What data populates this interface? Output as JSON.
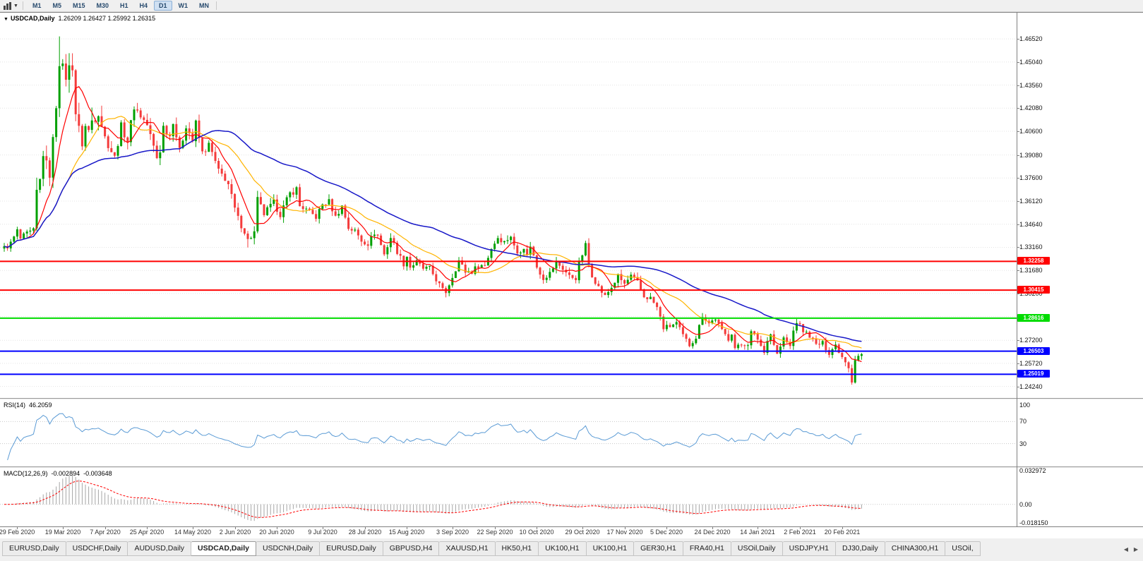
{
  "toolbar": {
    "timeframes": [
      "M1",
      "M5",
      "M15",
      "M30",
      "H1",
      "H4",
      "D1",
      "W1",
      "MN"
    ],
    "active_timeframe": "D1",
    "dropdown_caret": "▼"
  },
  "chart_data": {
    "type": "candlestick",
    "title": "USDCAD,Daily",
    "ohlc_display": "1.26209 1.26427 1.25992 1.26315",
    "marker": "▼",
    "ylim": [
      1.235,
      1.482
    ],
    "num_candles": 265,
    "y_axis_labels": [
      "1.46520",
      "1.45040",
      "1.43560",
      "1.42080",
      "1.40600",
      "1.39080",
      "1.37600",
      "1.36120",
      "1.34640",
      "1.33160",
      "1.31680",
      "1.30200",
      "1.28720",
      "1.27200",
      "1.25720",
      "1.24240"
    ],
    "x_axis_dates": [
      [
        4,
        "29 Feb 2020"
      ],
      [
        18,
        "19 Mar 2020"
      ],
      [
        31,
        "7 Apr 2020"
      ],
      [
        44,
        "25 Apr 2020"
      ],
      [
        58,
        "14 May 2020"
      ],
      [
        71,
        "2 Jun 2020"
      ],
      [
        84,
        "20 Jun 2020"
      ],
      [
        98,
        "9 Jul 2020"
      ],
      [
        111,
        "28 Jul 2020"
      ],
      [
        124,
        "15 Aug 2020"
      ],
      [
        138,
        "3 Sep 2020"
      ],
      [
        151,
        "22 Sep 2020"
      ],
      [
        164,
        "10 Oct 2020"
      ],
      [
        178,
        "29 Oct 2020"
      ],
      [
        191,
        "17 Nov 2020"
      ],
      [
        204,
        "5 Dec 2020"
      ],
      [
        218,
        "24 Dec 2020"
      ],
      [
        232,
        "14 Jan 2021"
      ],
      [
        245,
        "2 Feb 2021"
      ],
      [
        258,
        "20 Feb 2021"
      ]
    ],
    "horizontal_levels": [
      {
        "price": 1.32258,
        "label": "1.32258",
        "color": "red"
      },
      {
        "price": 1.30415,
        "label": "1.30415",
        "color": "red"
      },
      {
        "price": 1.28616,
        "label": "1.28616",
        "color": "green"
      },
      {
        "price": 1.26503,
        "label": "1.26503",
        "color": "blue"
      },
      {
        "price": 1.25019,
        "label": "1.25019",
        "color": "blue"
      }
    ],
    "close_keypoints": [
      [
        0,
        1.331
      ],
      [
        2,
        1.334
      ],
      [
        4,
        1.342
      ],
      [
        5,
        1.337
      ],
      [
        7,
        1.34
      ],
      [
        9,
        1.342
      ],
      [
        10,
        1.366
      ],
      [
        11,
        1.374
      ],
      [
        12,
        1.393
      ],
      [
        13,
        1.383
      ],
      [
        14,
        1.38
      ],
      [
        15,
        1.399
      ],
      [
        16,
        1.424
      ],
      [
        17,
        1.452
      ],
      [
        18,
        1.445
      ],
      [
        19,
        1.442
      ],
      [
        20,
        1.446
      ],
      [
        21,
        1.449
      ],
      [
        22,
        1.418
      ],
      [
        23,
        1.406
      ],
      [
        24,
        1.399
      ],
      [
        25,
        1.409
      ],
      [
        26,
        1.406
      ],
      [
        27,
        1.413
      ],
      [
        29,
        1.42
      ],
      [
        31,
        1.402
      ],
      [
        34,
        1.389
      ],
      [
        36,
        1.409
      ],
      [
        38,
        1.4
      ],
      [
        40,
        1.422
      ],
      [
        42,
        1.416
      ],
      [
        44,
        1.41
      ],
      [
        46,
        1.396
      ],
      [
        47,
        1.389
      ],
      [
        48,
        1.394
      ],
      [
        49,
        1.409
      ],
      [
        51,
        1.403
      ],
      [
        52,
        1.413
      ],
      [
        54,
        1.393
      ],
      [
        56,
        1.41
      ],
      [
        58,
        1.4
      ],
      [
        59,
        1.411
      ],
      [
        61,
        1.392
      ],
      [
        63,
        1.397
      ],
      [
        64,
        1.392
      ],
      [
        66,
        1.38
      ],
      [
        68,
        1.376
      ],
      [
        69,
        1.372
      ],
      [
        70,
        1.364
      ],
      [
        71,
        1.356
      ],
      [
        72,
        1.35
      ],
      [
        74,
        1.342
      ],
      [
        75,
        1.336
      ],
      [
        77,
        1.341
      ],
      [
        78,
        1.362
      ],
      [
        80,
        1.353
      ],
      [
        83,
        1.36
      ],
      [
        85,
        1.353
      ],
      [
        88,
        1.366
      ],
      [
        90,
        1.369
      ],
      [
        91,
        1.358
      ],
      [
        92,
        1.357
      ],
      [
        94,
        1.354
      ],
      [
        96,
        1.351
      ],
      [
        98,
        1.359
      ],
      [
        100,
        1.361
      ],
      [
        102,
        1.351
      ],
      [
        104,
        1.358
      ],
      [
        106,
        1.344
      ],
      [
        108,
        1.342
      ],
      [
        110,
        1.336
      ],
      [
        112,
        1.334
      ],
      [
        114,
        1.341
      ],
      [
        115,
        1.339
      ],
      [
        117,
        1.327
      ],
      [
        119,
        1.338
      ],
      [
        121,
        1.329
      ],
      [
        123,
        1.321
      ],
      [
        124,
        1.326
      ],
      [
        125,
        1.319
      ],
      [
        127,
        1.322
      ],
      [
        129,
        1.318
      ],
      [
        131,
        1.318
      ],
      [
        133,
        1.311
      ],
      [
        135,
        1.304
      ],
      [
        136,
        1.303
      ],
      [
        138,
        1.313
      ],
      [
        140,
        1.323
      ],
      [
        142,
        1.316
      ],
      [
        144,
        1.316
      ],
      [
        146,
        1.32
      ],
      [
        148,
        1.32
      ],
      [
        150,
        1.331
      ],
      [
        152,
        1.338
      ],
      [
        154,
        1.335
      ],
      [
        156,
        1.339
      ],
      [
        157,
        1.332
      ],
      [
        158,
        1.328
      ],
      [
        160,
        1.332
      ],
      [
        161,
        1.326
      ],
      [
        162,
        1.333
      ],
      [
        164,
        1.319
      ],
      [
        166,
        1.312
      ],
      [
        168,
        1.315
      ],
      [
        170,
        1.322
      ],
      [
        172,
        1.318
      ],
      [
        174,
        1.313
      ],
      [
        176,
        1.312
      ],
      [
        177,
        1.321
      ],
      [
        179,
        1.333
      ],
      [
        180,
        1.321
      ],
      [
        181,
        1.314
      ],
      [
        183,
        1.306
      ],
      [
        185,
        1.3
      ],
      [
        187,
        1.306
      ],
      [
        189,
        1.313
      ],
      [
        191,
        1.308
      ],
      [
        193,
        1.313
      ],
      [
        195,
        1.309
      ],
      [
        197,
        1.3
      ],
      [
        199,
        1.299
      ],
      [
        201,
        1.293
      ],
      [
        203,
        1.28
      ],
      [
        205,
        1.281
      ],
      [
        207,
        1.283
      ],
      [
        209,
        1.275
      ],
      [
        211,
        1.269
      ],
      [
        213,
        1.274
      ],
      [
        215,
        1.288
      ],
      [
        217,
        1.283
      ],
      [
        219,
        1.286
      ],
      [
        221,
        1.278
      ],
      [
        223,
        1.273
      ],
      [
        224,
        1.277
      ],
      [
        225,
        1.267
      ],
      [
        227,
        1.269
      ],
      [
        229,
        1.27
      ],
      [
        230,
        1.277
      ],
      [
        232,
        1.273
      ],
      [
        234,
        1.264
      ],
      [
        235,
        1.273
      ],
      [
        236,
        1.276
      ],
      [
        238,
        1.263
      ],
      [
        240,
        1.273
      ],
      [
        242,
        1.268
      ],
      [
        243,
        1.278
      ],
      [
        244,
        1.284
      ],
      [
        246,
        1.278
      ],
      [
        248,
        1.275
      ],
      [
        250,
        1.269
      ],
      [
        252,
        1.27
      ],
      [
        254,
        1.264
      ],
      [
        256,
        1.269
      ],
      [
        258,
        1.2615
      ],
      [
        259,
        1.259
      ],
      [
        260,
        1.255
      ],
      [
        261,
        1.246
      ],
      [
        262,
        1.26
      ],
      [
        263,
        1.262
      ],
      [
        264,
        1.26315
      ]
    ],
    "volatility_segments": [
      [
        0,
        9,
        0.0045
      ],
      [
        10,
        30,
        0.011
      ],
      [
        31,
        48,
        0.006
      ],
      [
        49,
        69,
        0.0055
      ],
      [
        70,
        91,
        0.005
      ],
      [
        92,
        135,
        0.004
      ],
      [
        136,
        200,
        0.004
      ],
      [
        201,
        240,
        0.0035
      ],
      [
        241,
        264,
        0.0035
      ]
    ],
    "wick_overrides": {
      "high": {
        "17": 1.4668,
        "21": 1.456
      },
      "low": {
        "75": 1.3315,
        "261": 1.2435
      }
    },
    "colors": {
      "up": "#00A000",
      "down": "#F43B3B",
      "ma_red": "#FF0000",
      "ma_orange": "#FFB400",
      "ma_blue": "#1818C8",
      "level_red": "#FF0000",
      "level_green": "#00DC00",
      "level_blue": "#0000FF",
      "rsi_line": "#5B9BD5",
      "macd_hist": "#A6A6A6",
      "macd_signal": "#FF0000",
      "grid": "#E4E4E4"
    }
  },
  "rsi_panel": {
    "name": "RSI(14)",
    "value": "46.2059",
    "levels": [
      "100",
      "70",
      "30"
    ]
  },
  "macd_panel": {
    "name": "MACD(12,26,9)",
    "value_main": "-0.002894",
    "value_signal": "-0.003648",
    "axis_labels": [
      "0.032972",
      "0.00",
      "-0.018150"
    ],
    "max": 0.0345,
    "min": -0.0196
  },
  "tab_bar": {
    "items": [
      "EURUSD,Daily",
      "USDCHF,Daily",
      "AUDUSD,Daily",
      "USDCAD,Daily",
      "USDCNH,Daily",
      "EURUSD,Daily",
      "GBPUSD,H4",
      "XAUUSD,H1",
      "HK50,H1",
      "UK100,H1",
      "UK100,H1",
      "GER30,H1",
      "FRA40,H1",
      "USOil,Daily",
      "USDJPY,H1",
      "DJ30,Daily",
      "CHINA300,H1",
      "USOil,"
    ],
    "active_index": 3,
    "left_arrow": "◀",
    "right_arrow": "▶"
  }
}
